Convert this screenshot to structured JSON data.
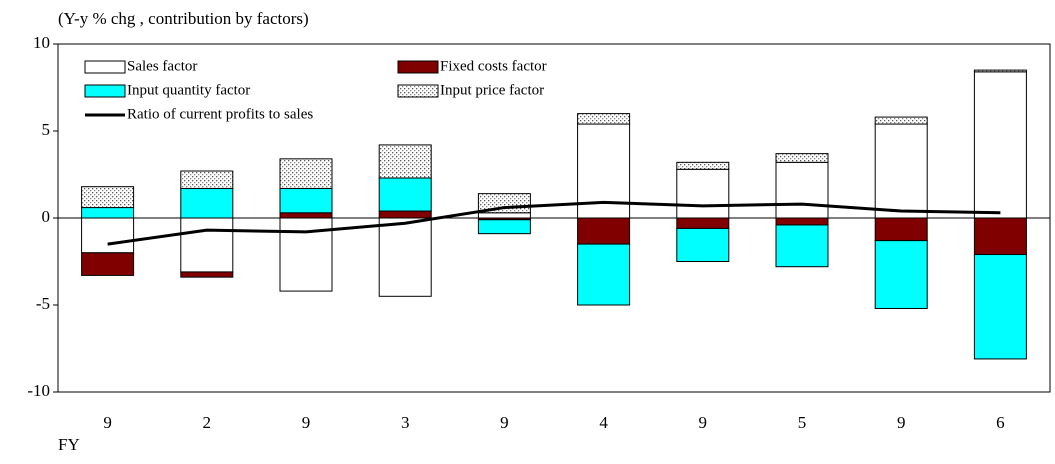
{
  "chart_data": {
    "type": "bar",
    "title": "(Y-y % chg , contribution by factors)",
    "x_label": "FY",
    "categories": [
      "9",
      "2",
      "9",
      "3",
      "9",
      "4",
      "9",
      "5",
      "9",
      "6"
    ],
    "series": [
      {
        "name": "Sales factor",
        "color": "#ffffff",
        "values": [
          -2.0,
          -3.1,
          -4.2,
          -4.5,
          0.3,
          5.4,
          2.8,
          3.2,
          5.4,
          8.4
        ]
      },
      {
        "name": "Fixed costs factor",
        "color": "#800000",
        "values": [
          -1.3,
          -0.3,
          0.3,
          0.4,
          -0.1,
          -1.5,
          -0.6,
          -0.4,
          -1.3,
          -2.1
        ]
      },
      {
        "name": "Input quantity factor",
        "color": "#00ffff",
        "values": [
          0.6,
          1.7,
          1.4,
          1.9,
          -0.8,
          -3.5,
          -1.9,
          -2.4,
          -3.9,
          -6.0
        ]
      },
      {
        "name": "Input price factor",
        "color": "dotted",
        "values": [
          1.2,
          1.0,
          1.7,
          1.9,
          1.1,
          0.6,
          0.4,
          0.5,
          0.4,
          0.1
        ]
      },
      {
        "name": "Ratio of current profits to sales",
        "color": "#000000",
        "type": "line",
        "values": [
          -1.5,
          -0.7,
          -0.8,
          -0.3,
          0.6,
          0.9,
          0.7,
          0.8,
          0.4,
          0.3
        ]
      }
    ],
    "ylim": [
      -10,
      10
    ],
    "yticks": [
      10,
      5,
      0,
      -5,
      -10
    ],
    "legend": "upper left"
  }
}
